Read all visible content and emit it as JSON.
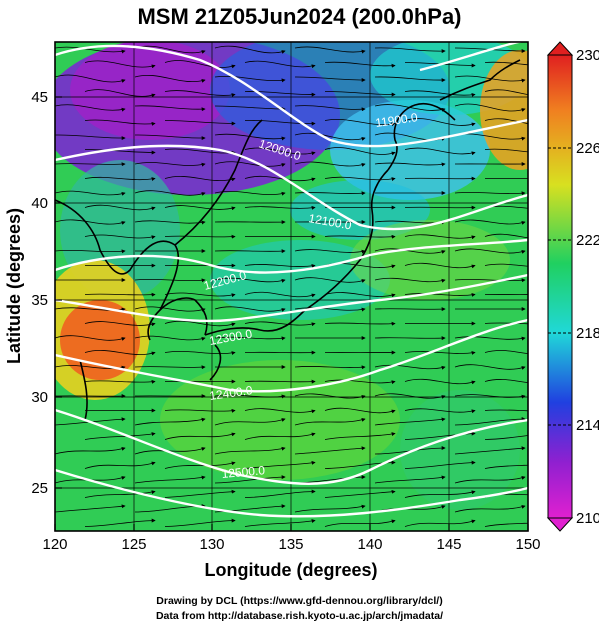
{
  "title": "MSM 21Z05Jun2024 (200.0hPa)",
  "xlabel": "Longitude (degrees)",
  "ylabel": "Latitude  (degrees)",
  "x_ticks": [
    "120",
    "125",
    "130",
    "135",
    "140",
    "145",
    "150"
  ],
  "y_ticks": [
    "25",
    "30",
    "35",
    "40",
    "45"
  ],
  "colorbar": {
    "min": "210",
    "max": "230",
    "labels": [
      "230",
      "226",
      "222",
      "218",
      "214",
      "210"
    ]
  },
  "contour_labels": [
    "12000.0",
    "11900.0",
    "12100.0",
    "12200.0",
    "12300.0",
    "12400.0",
    "12500.0"
  ],
  "credits": {
    "line1": "Drawing by DCL (https://www.gfd-dennou.org/library/dcl/)",
    "line2": "Data from http://database.rish.kyoto-u.ac.jp/arch/jmadata/"
  },
  "colors": {
    "purple": "#8a1fc8",
    "blue": "#2d3fd8",
    "cyan": "#20d2e0",
    "green": "#2fcf5a",
    "yellow": "#e8e820",
    "orange": "#f07a20",
    "red": "#e83020"
  }
}
